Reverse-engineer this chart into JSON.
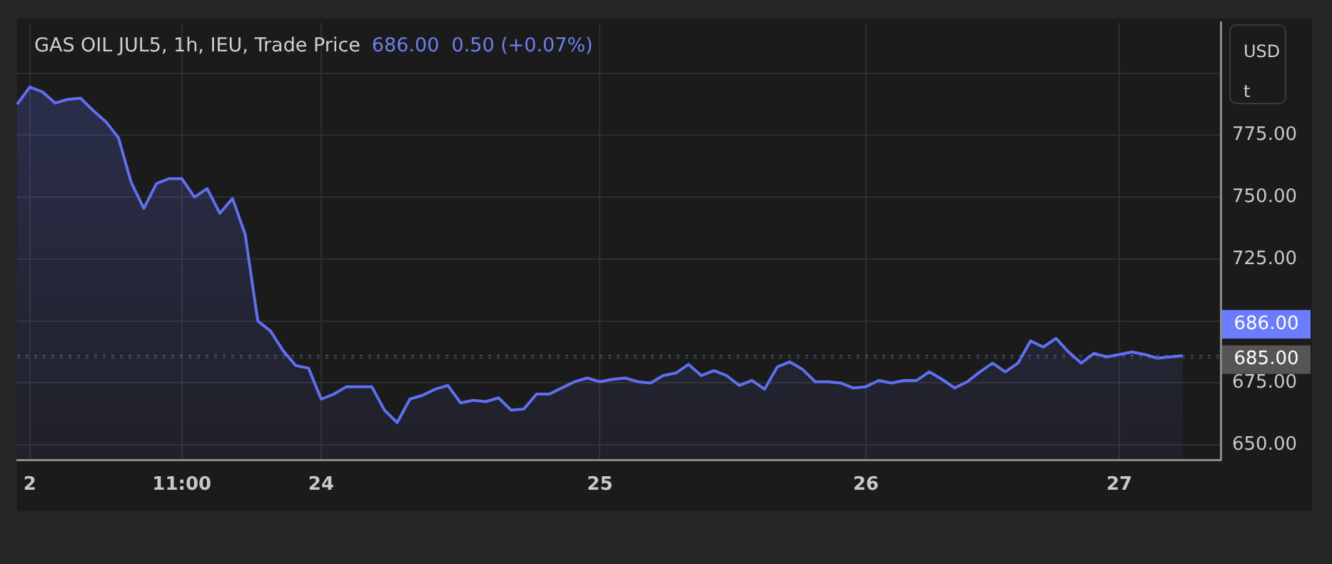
{
  "chart_data": {
    "type": "area",
    "title": "GAS OIL JUL5, 1h, IEU, Trade Price",
    "subtitle": "686.00  0.50 (+0.07%)",
    "ylabel": "USD t",
    "categories": [
      null,
      "2",
      null,
      null,
      null,
      null,
      null,
      null,
      null,
      null,
      null,
      null,
      null,
      "11:00",
      null,
      null,
      null,
      null,
      null,
      null,
      null,
      null,
      null,
      null,
      "24",
      null,
      null,
      null,
      null,
      null,
      null,
      null,
      null,
      null,
      null,
      null,
      null,
      null,
      null,
      null,
      null,
      null,
      null,
      null,
      null,
      null,
      "25",
      null,
      null,
      null,
      null,
      null,
      null,
      null,
      null,
      null,
      null,
      null,
      null,
      null,
      null,
      null,
      null,
      null,
      null,
      null,
      null,
      "26",
      null,
      null,
      null,
      null,
      null,
      null,
      null,
      null,
      null,
      null,
      null,
      null,
      null,
      null,
      null,
      null,
      null,
      null,
      null,
      "27",
      null,
      null,
      null,
      null,
      null,
      null,
      null,
      null
    ],
    "series": [
      {
        "color": "#5f6ff0",
        "values": [
          787.5,
          794.5,
          792.5,
          788,
          789.5,
          790,
          785,
          780.5,
          774,
          756,
          745.5,
          755.5,
          757.5,
          757.5,
          750,
          753.5,
          743.5,
          749.5,
          735,
          700,
          696,
          688,
          682,
          681,
          668.5,
          670.5,
          673.5,
          673.5,
          673.5,
          664,
          659,
          668.5,
          670,
          672.5,
          674,
          667,
          668,
          667.5,
          669,
          664,
          664.5,
          670.5,
          670.5,
          673,
          675.5,
          677,
          675.5,
          676.5,
          677,
          675.5,
          675,
          678,
          679,
          682.5,
          678,
          680,
          678,
          674,
          676,
          672.5,
          681.5,
          683.5,
          680.5,
          675.5,
          675.5,
          675,
          673,
          673.5,
          676,
          675,
          676,
          676,
          679.5,
          676.5,
          673,
          675.5,
          679.5,
          683,
          679.5,
          683,
          692,
          689.5,
          693,
          687.5,
          683,
          687,
          685.5,
          686.5,
          687.5,
          686.5,
          685,
          685.5,
          686,
          null,
          null,
          null
        ]
      }
    ],
    "ylim": [
      644,
      820.5
    ],
    "yticks": [
      {
        "value": 650,
        "label": "650.00"
      },
      {
        "value": 675,
        "label": "675.00"
      },
      {
        "value": 700,
        "label": null
      },
      {
        "value": 725,
        "label": "725.00"
      },
      {
        "value": 750,
        "label": "750.00"
      },
      {
        "value": 775,
        "label": "775.00"
      },
      {
        "value": 800,
        "label": null
      }
    ],
    "ref_lines": [
      {
        "axis": "y",
        "value": 686,
        "label": "686.00",
        "color": "#6b7cff"
      },
      {
        "axis": "y",
        "value": 685,
        "label": "685.00",
        "color": "#555555"
      }
    ],
    "grid": true,
    "legend": false,
    "marker": "none",
    "line_style": "solid"
  }
}
